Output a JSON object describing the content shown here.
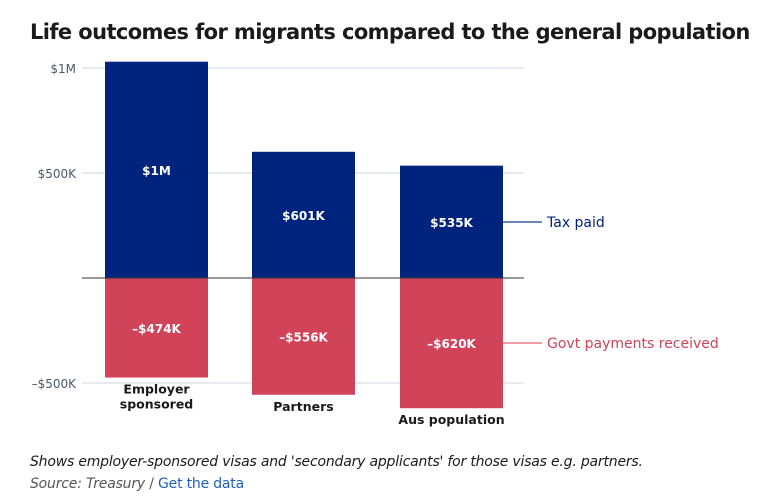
{
  "colors": {
    "tax": "#00247d",
    "govt": "#d04358",
    "tax_legend_line": "#3a5fa8",
    "govt_legend_line": "#e87b8a",
    "grid": "#cfd6df",
    "axis_text": "#4a5a6a",
    "link": "#1f5fbf"
  },
  "chart_data": {
    "type": "bar",
    "title": "Life outcomes for migrants compared to the general population",
    "categories": [
      "Employer sponsored",
      "Partners",
      "Aus population"
    ],
    "series": [
      {
        "name": "Tax paid",
        "values": [
          1030000,
          601000,
          535000
        ],
        "labels": [
          "$1M",
          "$601K",
          "$535K"
        ]
      },
      {
        "name": "Govt payments received",
        "values": [
          -474000,
          -556000,
          -620000
        ],
        "labels": [
          "–$474K",
          "–$556K",
          "–$620K"
        ]
      }
    ],
    "ylim": [
      -600000,
      1050000
    ],
    "yticks": [
      {
        "value": 1000000,
        "label": "$1M"
      },
      {
        "value": 500000,
        "label": "$500K"
      },
      {
        "value": -500000,
        "label": "–$500K"
      }
    ],
    "grid": true,
    "stacked": "diverging",
    "legend_placement": "right, inline labels"
  },
  "footnote": "Shows employer-sponsored visas and 'secondary applicants' for those visas e.g. partners.",
  "source": {
    "label": "Source: Treasury",
    "separator": " / ",
    "link_text": "Get the data"
  }
}
